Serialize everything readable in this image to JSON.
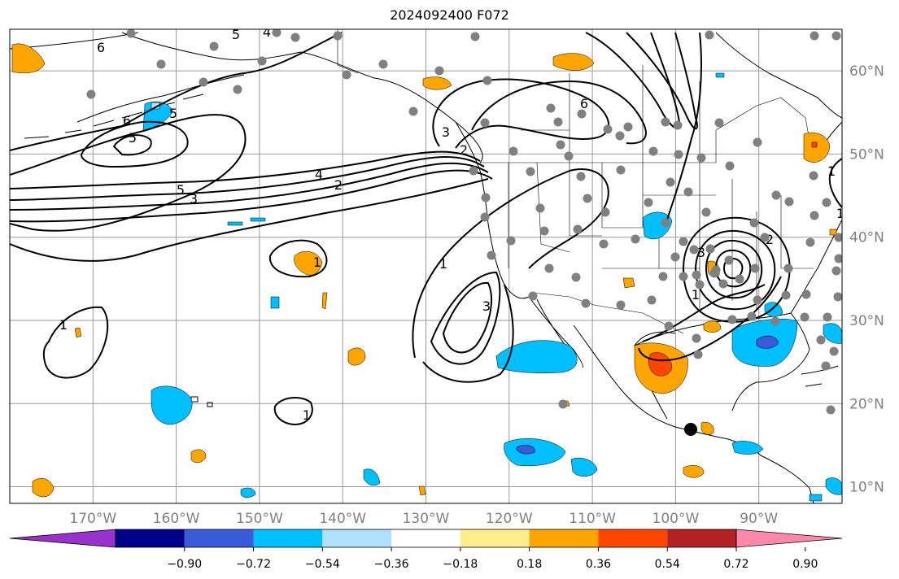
{
  "title": "2024092400 F072",
  "map": {
    "lon_range": [
      -180,
      -80
    ],
    "lat_range": [
      8,
      65
    ],
    "gridline_color": "#999999",
    "lon_ticks": [
      -170,
      -160,
      -150,
      -140,
      -130,
      -120,
      -110,
      -100,
      -90
    ],
    "lon_labels": [
      "170°W",
      "160°W",
      "150°W",
      "140°W",
      "130°W",
      "120°W",
      "110°W",
      "100°W",
      "90°W"
    ],
    "lat_ticks": [
      10,
      20,
      30,
      40,
      50,
      60
    ],
    "lat_labels": [
      "10°N",
      "20°N",
      "30°N",
      "40°N",
      "50°N",
      "60°N"
    ],
    "contour_color": "#000000",
    "contour_labels": [
      "6",
      "5",
      "4",
      "6",
      "5",
      "5",
      "4",
      "2",
      "3",
      "5",
      "3",
      "6",
      "1",
      "3",
      "3",
      "2",
      "1",
      "1",
      "1",
      "1",
      "1",
      "1",
      "2"
    ],
    "station_marker_color": "#808080",
    "highlight_marker_color": "#000000"
  },
  "colorbar": {
    "colors": [
      "#9932cc",
      "#00008b",
      "#3a5bd9",
      "#00bfff",
      "#b0e0ff",
      "#ffffff",
      "#ffec8b",
      "#ffa500",
      "#ff4500",
      "#b22222",
      "#ff88aa"
    ],
    "ticks": [
      "−0.90",
      "−0.72",
      "−0.54",
      "−0.36",
      "−0.18",
      "0.18",
      "0.36",
      "0.54",
      "0.72",
      "0.90"
    ]
  }
}
